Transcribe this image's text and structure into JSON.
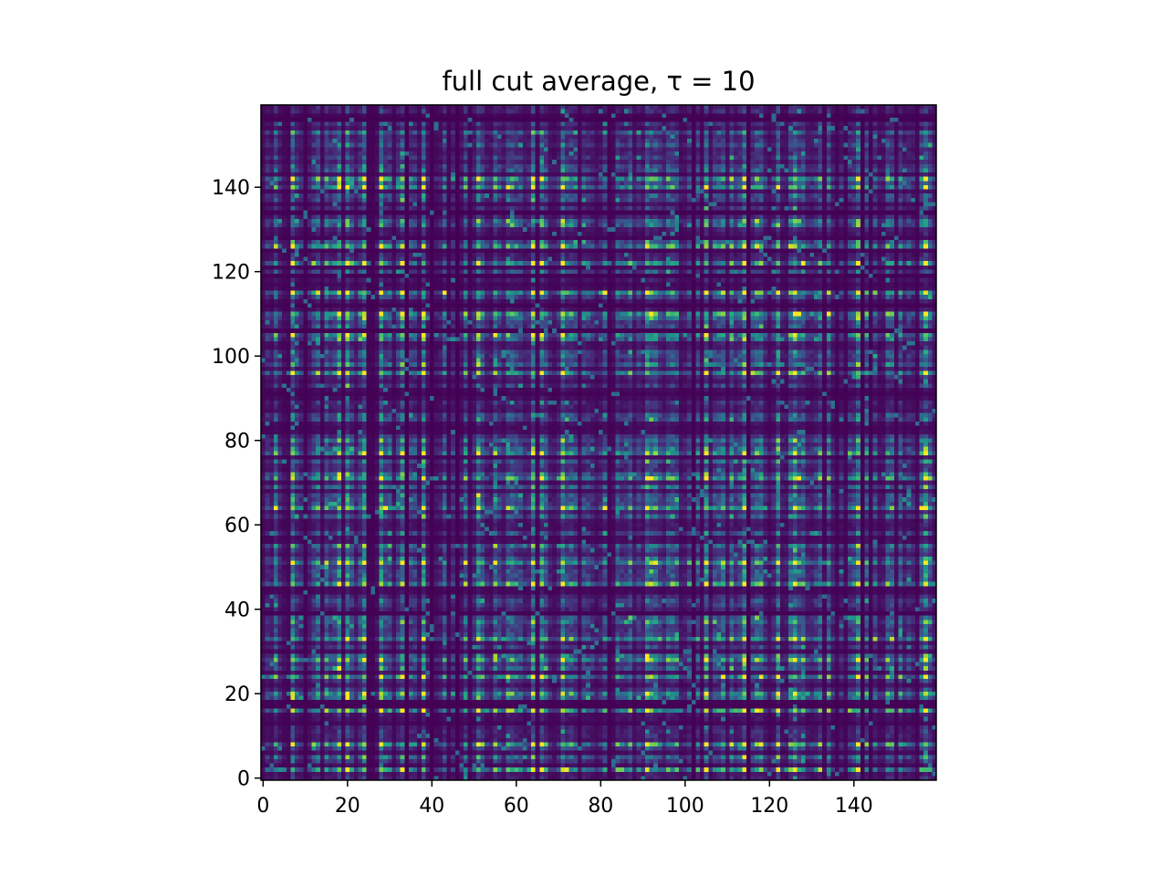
{
  "chart_data": {
    "type": "heatmap",
    "title": "full cut average, τ = 10",
    "xlabel": "",
    "ylabel": "",
    "rows": 160,
    "cols": 160,
    "xlim": [
      -0.5,
      159.5
    ],
    "ylim": [
      -0.5,
      159.5
    ],
    "origin": "lower",
    "colormap": "viridis",
    "x_ticks": [
      0,
      20,
      40,
      60,
      80,
      100,
      120,
      140
    ],
    "x_tick_labels": [
      "0",
      "20",
      "40",
      "60",
      "80",
      "100",
      "120",
      "140"
    ],
    "y_ticks": [
      0,
      20,
      40,
      60,
      80,
      100,
      120,
      140
    ],
    "y_tick_labels": [
      "0",
      "20",
      "40",
      "60",
      "80",
      "100",
      "120",
      "140"
    ],
    "grid": false,
    "colorbar": false,
    "bright_columns": [
      7,
      18,
      20,
      24,
      28,
      33,
      38,
      51,
      64,
      66,
      71,
      91,
      105,
      114,
      122,
      126,
      141,
      157
    ],
    "bright_rows": [
      2,
      8,
      16,
      20,
      24,
      28,
      33,
      46,
      51,
      64,
      71,
      77,
      96,
      105,
      110,
      115,
      122,
      126,
      140,
      142
    ]
  }
}
